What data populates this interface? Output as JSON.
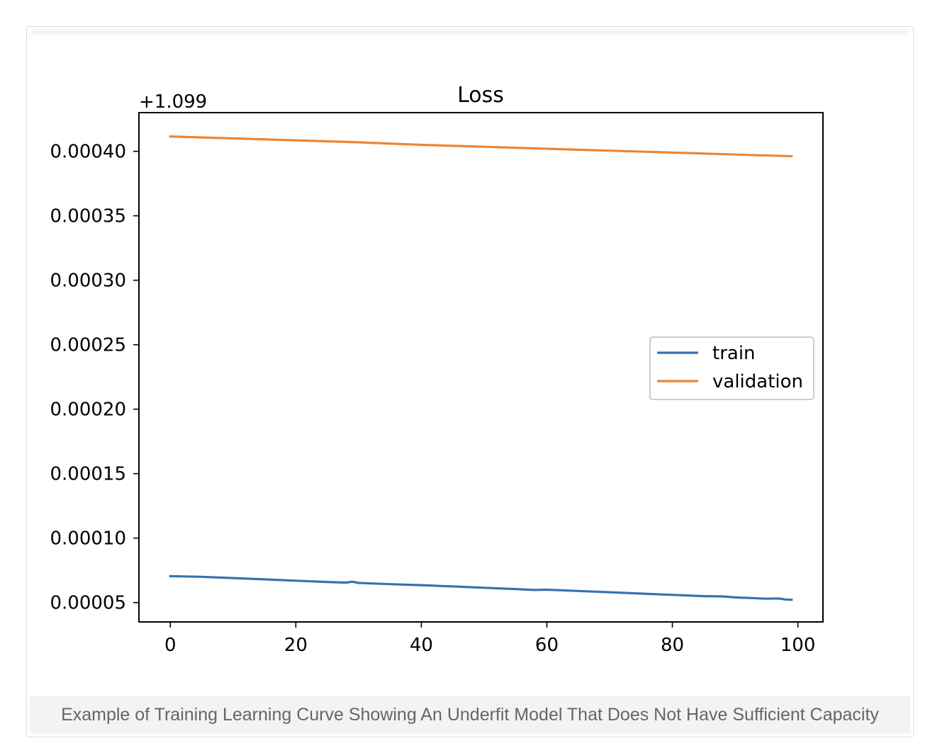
{
  "caption": "Example of Training Learning Curve Showing An Underfit Model That Does Not Have Sufficient Capacity",
  "chart_data": {
    "type": "line",
    "title": "Loss",
    "offset_label": "+1.099",
    "xlabel": "",
    "ylabel": "",
    "xlim": [
      -5,
      104
    ],
    "ylim": [
      3.5e-05,
      0.00043
    ],
    "x_ticks": [
      0,
      20,
      40,
      60,
      80,
      100
    ],
    "x_tick_labels": [
      "0",
      "20",
      "40",
      "60",
      "80",
      "100"
    ],
    "y_ticks": [
      5e-05,
      0.0001,
      0.00015,
      0.0002,
      0.00025,
      0.0003,
      0.00035,
      0.0004
    ],
    "y_tick_labels": [
      "0.00005",
      "0.00010",
      "0.00015",
      "0.00020",
      "0.00025",
      "0.00030",
      "0.00035",
      "0.00040"
    ],
    "grid": false,
    "legend_position": "center-right",
    "series": [
      {
        "name": "train",
        "color": "#3a72ae",
        "x": [
          0,
          5,
          10,
          15,
          20,
          25,
          28,
          29,
          30,
          35,
          40,
          45,
          50,
          55,
          58,
          60,
          65,
          70,
          75,
          80,
          85,
          88,
          90,
          95,
          97,
          98,
          99
        ],
        "y": [
          7.05e-05,
          7e-05,
          6.9e-05,
          6.8e-05,
          6.7e-05,
          6.6e-05,
          6.55e-05,
          6.62e-05,
          6.52e-05,
          6.43e-05,
          6.35e-05,
          6.25e-05,
          6.15e-05,
          6.05e-05,
          5.98e-05,
          6e-05,
          5.9e-05,
          5.8e-05,
          5.7e-05,
          5.6e-05,
          5.5e-05,
          5.48e-05,
          5.4e-05,
          5.3e-05,
          5.32e-05,
          5.24e-05,
          5.22e-05
        ]
      },
      {
        "name": "validation",
        "color": "#ef8532",
        "x": [
          0,
          10,
          20,
          30,
          40,
          50,
          60,
          70,
          80,
          90,
          99
        ],
        "y": [
          0.0004115,
          0.00041,
          0.0004085,
          0.000407,
          0.000405,
          0.0004035,
          0.000402,
          0.0004005,
          0.000399,
          0.0003975,
          0.0003962
        ]
      }
    ]
  }
}
